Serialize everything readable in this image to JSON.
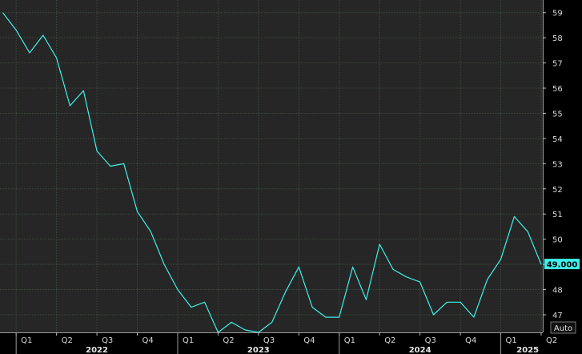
{
  "chart_data": {
    "type": "line",
    "title": "",
    "xlabel": "",
    "ylabel": "",
    "ylim": [
      46.3,
      59.5
    ],
    "y_ticks": [
      47,
      48,
      49,
      50,
      51,
      52,
      53,
      54,
      55,
      56,
      57,
      58,
      59
    ],
    "grid": true,
    "x_axis": {
      "quarter_ticks": [
        {
          "label": "Q1",
          "t": 2022.0
        },
        {
          "label": "Q2",
          "t": 2022.25
        },
        {
          "label": "Q3",
          "t": 2022.5
        },
        {
          "label": "Q4",
          "t": 2022.75
        },
        {
          "label": "Q1",
          "t": 2023.0
        },
        {
          "label": "Q2",
          "t": 2023.25
        },
        {
          "label": "Q3",
          "t": 2023.5
        },
        {
          "label": "Q4",
          "t": 2023.75
        },
        {
          "label": "Q1",
          "t": 2024.0
        },
        {
          "label": "Q2",
          "t": 2024.25
        },
        {
          "label": "Q3",
          "t": 2024.5
        },
        {
          "label": "Q4",
          "t": 2024.75
        },
        {
          "label": "Q1",
          "t": 2025.0
        },
        {
          "label": "Q2",
          "t": 2025.25
        }
      ],
      "years": [
        {
          "label": "2022",
          "t": 2022.5
        },
        {
          "label": "2023",
          "t": 2023.5
        },
        {
          "label": "2024",
          "t": 2024.5
        },
        {
          "label": "2025",
          "t": 2025.167
        }
      ],
      "range": [
        2021.9,
        2025.26
      ]
    },
    "series": [
      {
        "color": "#3ff0ea",
        "points": [
          [
            "2021-12",
            59.0
          ],
          [
            "2022-01",
            58.3
          ],
          [
            "2022-02",
            57.4
          ],
          [
            "2022-03",
            58.1
          ],
          [
            "2022-04",
            57.2
          ],
          [
            "2022-05",
            55.3
          ],
          [
            "2022-06",
            55.9
          ],
          [
            "2022-07",
            53.5
          ],
          [
            "2022-08",
            52.9
          ],
          [
            "2022-09",
            53.0
          ],
          [
            "2022-10",
            51.1
          ],
          [
            "2022-11",
            50.3
          ],
          [
            "2022-12",
            49.0
          ],
          [
            "2023-01",
            48.0
          ],
          [
            "2023-02",
            47.3
          ],
          [
            "2023-03",
            47.5
          ],
          [
            "2023-04",
            46.3
          ],
          [
            "2023-05",
            46.7
          ],
          [
            "2023-06",
            46.4
          ],
          [
            "2023-07",
            46.3
          ],
          [
            "2023-08",
            46.7
          ],
          [
            "2023-09",
            47.9
          ],
          [
            "2023-10",
            48.9
          ],
          [
            "2023-11",
            47.3
          ],
          [
            "2023-12",
            46.9
          ],
          [
            "2024-01",
            46.9
          ],
          [
            "2024-02",
            48.9
          ],
          [
            "2024-03",
            47.6
          ],
          [
            "2024-04",
            49.8
          ],
          [
            "2024-05",
            48.8
          ],
          [
            "2024-06",
            48.5
          ],
          [
            "2024-07",
            48.3
          ],
          [
            "2024-08",
            47.0
          ],
          [
            "2024-09",
            47.5
          ],
          [
            "2024-10",
            47.5
          ],
          [
            "2024-11",
            46.9
          ],
          [
            "2024-12",
            48.4
          ],
          [
            "2025-01",
            49.2
          ],
          [
            "2025-02",
            50.9
          ],
          [
            "2025-03",
            50.3
          ],
          [
            "2025-04",
            49.0
          ]
        ]
      }
    ],
    "last_value_label": "49.000",
    "last_value": 49.0,
    "auto_label": "Auto"
  },
  "colors": {
    "background": "#000000",
    "plot_background": "#262626",
    "grid": "#3a4a3a",
    "line": "#3ff0ea",
    "last_value_bg": "#3ff0ea"
  }
}
